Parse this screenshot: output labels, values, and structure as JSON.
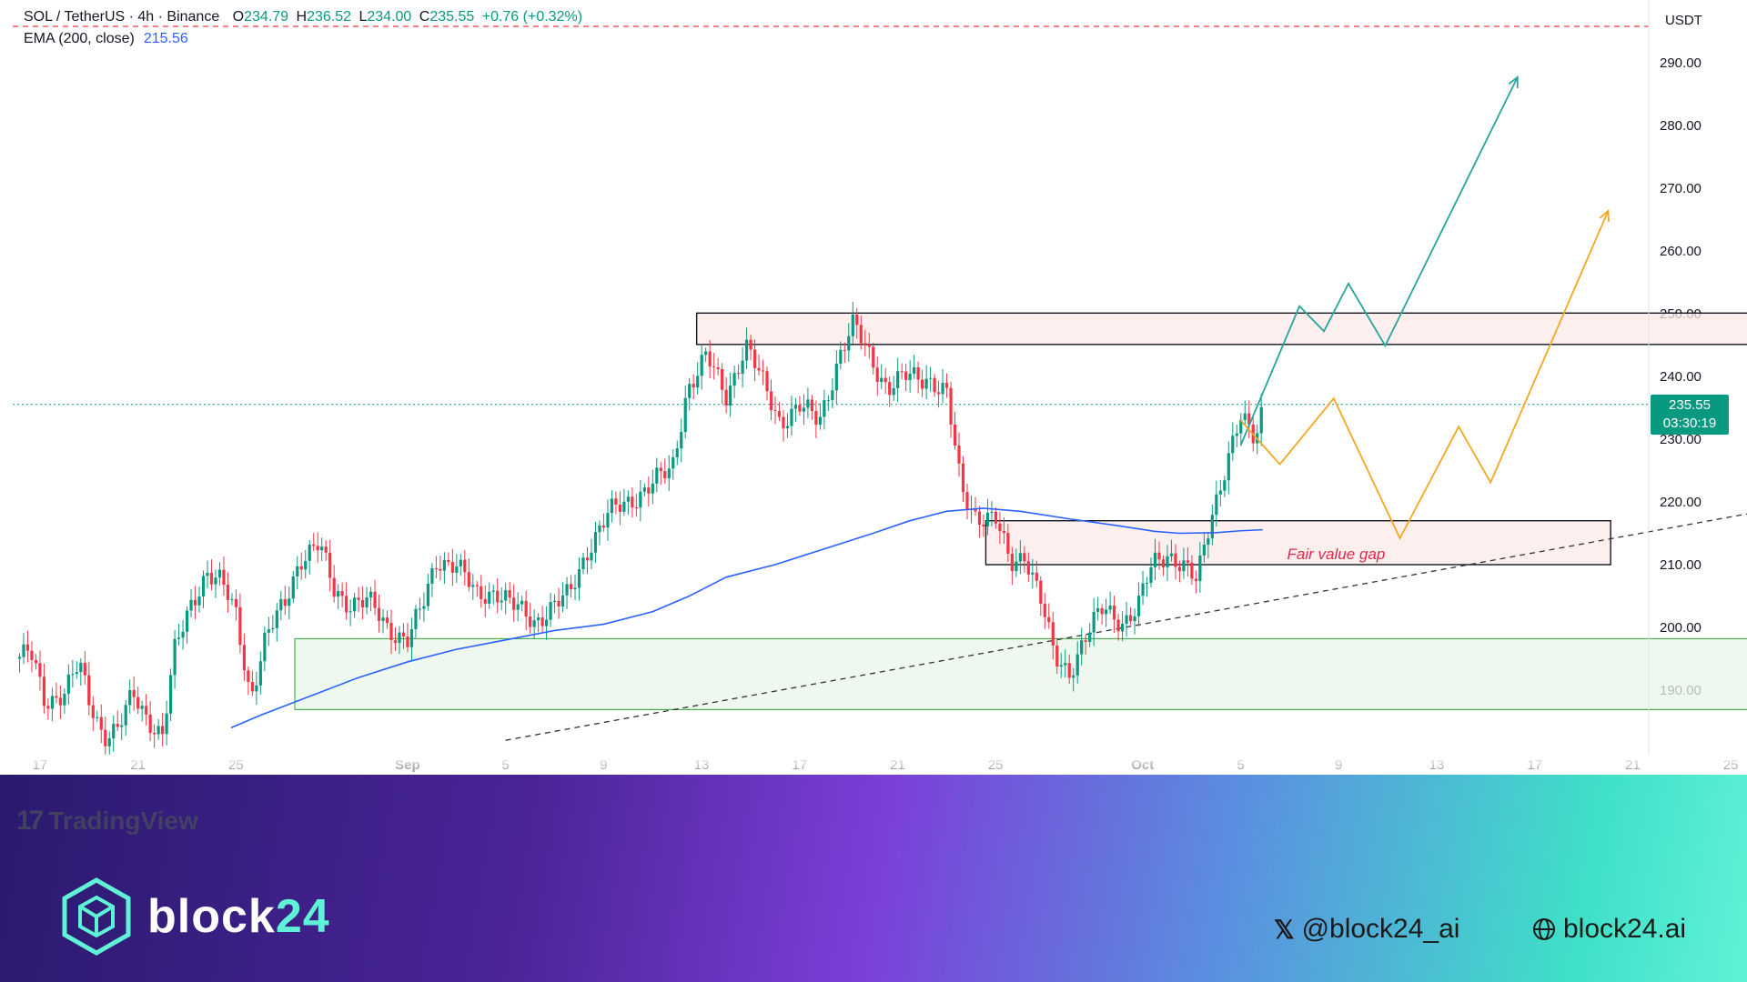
{
  "header": {
    "symbol": "SOL / TetherUS · 4h · Binance",
    "open_label": "O",
    "open": "234.79",
    "high_label": "H",
    "high": "236.52",
    "low_label": "L",
    "low": "234.00",
    "close_label": "C",
    "close": "235.55",
    "change": "+0.76 (+0.32%)"
  },
  "indicator": {
    "label": "EMA (200, close)",
    "value": "215.56"
  },
  "price_axis": {
    "unit": "USDT",
    "current_price": "235.55",
    "countdown": "03:30:19"
  },
  "annotation": {
    "fvg_label": "Fair value gap"
  },
  "branding": {
    "tradingview": "TradingView",
    "brand_prefix": "block",
    "brand_suffix": "24",
    "twitter": "@block24_ai",
    "website": "block24.ai"
  },
  "colors": {
    "up": "#089981",
    "down": "#f23645",
    "ema": "#2962ff",
    "bull_path": "#26a69a",
    "alt_path": "#f5a623"
  },
  "chart_data": {
    "type": "candlestick",
    "title": "SOL / TetherUS · 4h · Binance",
    "ylim": [
      185,
      297
    ],
    "y_ticks": [
      190,
      200,
      210,
      220,
      230,
      240,
      250,
      260,
      270,
      280,
      290
    ],
    "y_tick_labels": [
      "190.00",
      "200.00",
      "210.00",
      "220.00",
      "230.00",
      "240.00",
      "250.00",
      "260.00",
      "270.00",
      "280.00",
      "290.00"
    ],
    "x_range_days": [
      0,
      70
    ],
    "x_ticks": [
      {
        "day": 1,
        "label": "17"
      },
      {
        "day": 5,
        "label": "21"
      },
      {
        "day": 9,
        "label": "25"
      },
      {
        "day": 16,
        "label": "Sep"
      },
      {
        "day": 20,
        "label": "5"
      },
      {
        "day": 24,
        "label": "9"
      },
      {
        "day": 28,
        "label": "13"
      },
      {
        "day": 32,
        "label": "17"
      },
      {
        "day": 36,
        "label": "21"
      },
      {
        "day": 40,
        "label": "25"
      },
      {
        "day": 46,
        "label": "Oct"
      },
      {
        "day": 50,
        "label": "5"
      },
      {
        "day": 54,
        "label": "9"
      },
      {
        "day": 58,
        "label": "13"
      },
      {
        "day": 62,
        "label": "17"
      },
      {
        "day": 66,
        "label": "21"
      },
      {
        "day": 70,
        "label": "25"
      }
    ],
    "price_path": [
      [
        0.0,
        195
      ],
      [
        0.6,
        196
      ],
      [
        1.2,
        188
      ],
      [
        2.0,
        190
      ],
      [
        2.6,
        194
      ],
      [
        3.0,
        188
      ],
      [
        3.6,
        183
      ],
      [
        4.2,
        184
      ],
      [
        4.8,
        189
      ],
      [
        5.3,
        186
      ],
      [
        6.0,
        183
      ],
      [
        6.5,
        196
      ],
      [
        7.2,
        204
      ],
      [
        7.8,
        209
      ],
      [
        8.4,
        207
      ],
      [
        9.0,
        202
      ],
      [
        9.6,
        189
      ],
      [
        10.2,
        198
      ],
      [
        11.0,
        204
      ],
      [
        11.6,
        211
      ],
      [
        12.4,
        213
      ],
      [
        13.0,
        206
      ],
      [
        13.6,
        204
      ],
      [
        14.4,
        204
      ],
      [
        15.2,
        200
      ],
      [
        16.0,
        198
      ],
      [
        16.6,
        203
      ],
      [
        17.2,
        211
      ],
      [
        18.0,
        210
      ],
      [
        18.8,
        205
      ],
      [
        19.6,
        206
      ],
      [
        20.4,
        203
      ],
      [
        21.2,
        201
      ],
      [
        21.8,
        203
      ],
      [
        22.6,
        205
      ],
      [
        23.4,
        213
      ],
      [
        24.2,
        218
      ],
      [
        25.0,
        220
      ],
      [
        26.0,
        223
      ],
      [
        26.8,
        225
      ],
      [
        27.4,
        238
      ],
      [
        28.2,
        243
      ],
      [
        29.0,
        237
      ],
      [
        29.8,
        245
      ],
      [
        30.6,
        238
      ],
      [
        31.2,
        233
      ],
      [
        32.0,
        235
      ],
      [
        32.8,
        233
      ],
      [
        33.6,
        243
      ],
      [
        34.2,
        248
      ],
      [
        34.8,
        244
      ],
      [
        35.6,
        238
      ],
      [
        36.4,
        240
      ],
      [
        37.2,
        240
      ],
      [
        38.0,
        237
      ],
      [
        38.6,
        222
      ],
      [
        39.2,
        218
      ],
      [
        40.0,
        217
      ],
      [
        40.6,
        210
      ],
      [
        41.2,
        212
      ],
      [
        41.8,
        205
      ],
      [
        42.4,
        195
      ],
      [
        43.0,
        193
      ],
      [
        43.6,
        198
      ],
      [
        44.4,
        203
      ],
      [
        45.2,
        201
      ],
      [
        45.8,
        203
      ],
      [
        46.4,
        210
      ],
      [
        47.0,
        212
      ],
      [
        47.6,
        210
      ],
      [
        48.2,
        207
      ],
      [
        48.8,
        218
      ],
      [
        49.4,
        226
      ],
      [
        50.0,
        233
      ],
      [
        50.6,
        230
      ],
      [
        50.9,
        235.55
      ]
    ],
    "ema_200": [
      [
        8.8,
        184
      ],
      [
        10.0,
        186
      ],
      [
        12.0,
        189
      ],
      [
        14.0,
        192
      ],
      [
        16.0,
        194.5
      ],
      [
        18.0,
        196.5
      ],
      [
        20.0,
        198
      ],
      [
        22.0,
        199.5
      ],
      [
        24.0,
        200.5
      ],
      [
        26.0,
        202.5
      ],
      [
        27.5,
        205
      ],
      [
        29.0,
        208
      ],
      [
        31.0,
        210
      ],
      [
        33.0,
        212.5
      ],
      [
        35.0,
        215
      ],
      [
        36.5,
        217
      ],
      [
        38.0,
        218.5
      ],
      [
        39.5,
        219
      ],
      [
        41.0,
        218.5
      ],
      [
        43.0,
        217.3
      ],
      [
        45.0,
        216.2
      ],
      [
        46.5,
        215.3
      ],
      [
        47.5,
        215
      ],
      [
        49.0,
        215.1
      ],
      [
        50.0,
        215.4
      ],
      [
        50.9,
        215.56
      ]
    ],
    "zones": [
      {
        "name": "resistance",
        "x": [
          27.8,
          71.6
        ],
        "y": [
          245.1,
          250.1
        ],
        "fill": "#fdeaea",
        "stroke": "#131722"
      },
      {
        "name": "fair_value_gap",
        "x": [
          39.6,
          65.1
        ],
        "y": [
          210.0,
          217.0
        ],
        "fill": "#fdeaea",
        "stroke": "#131722"
      },
      {
        "name": "demand",
        "x": [
          11.4,
          77.0
        ],
        "y": [
          186.9,
          198.2
        ],
        "fill": "#e8f5e9",
        "stroke": "#4caf50"
      }
    ],
    "trendline": [
      [
        20.0,
        182.0
      ],
      [
        77.0,
        222.6
      ]
    ],
    "projection_bullish": [
      [
        50.0,
        229
      ],
      [
        52.4,
        251.2
      ],
      [
        53.4,
        247.2
      ],
      [
        54.4,
        254.8
      ],
      [
        55.9,
        244.9
      ],
      [
        61.3,
        287.7
      ]
    ],
    "projection_alternate": [
      [
        50.0,
        233
      ],
      [
        51.6,
        226
      ],
      [
        53.8,
        236.5
      ],
      [
        56.5,
        214.2
      ],
      [
        58.9,
        232
      ],
      [
        60.2,
        223.1
      ],
      [
        65.0,
        266.4
      ]
    ],
    "current_price": 235.55
  }
}
